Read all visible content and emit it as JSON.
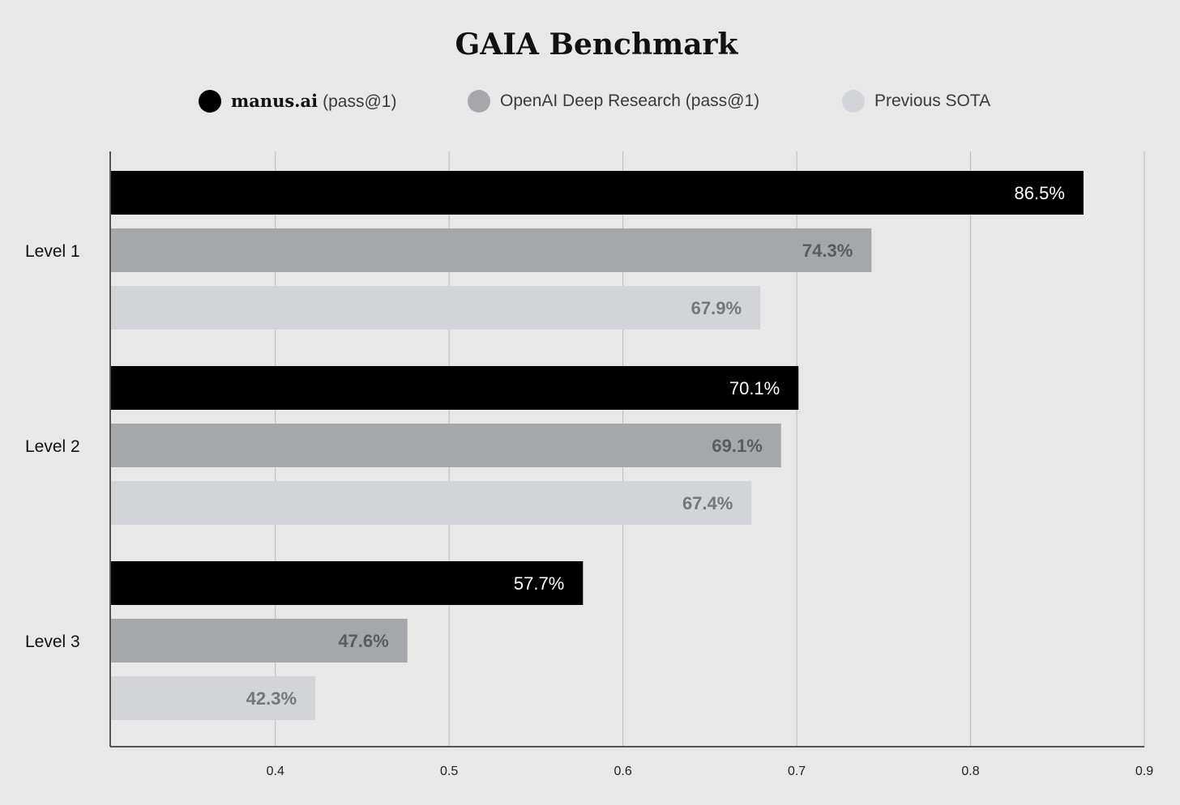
{
  "chart_data": {
    "type": "bar",
    "orientation": "horizontal",
    "title": "GAIA Benchmark",
    "categories": [
      "Level 1",
      "Level 2",
      "Level 3"
    ],
    "series": [
      {
        "name": "manus.ai (pass@1)",
        "brand": "manus.ai",
        "suffix": "(pass@1)",
        "color": "#000000",
        "label_color": "#ffffff",
        "values": [
          0.865,
          0.701,
          0.577
        ],
        "labels": [
          "86.5%",
          "70.1%",
          "57.7%"
        ]
      },
      {
        "name": "OpenAI Deep Research (pass@1)",
        "color": "#a6a7ab",
        "label_color": "#5a5b5e",
        "values": [
          0.743,
          0.691,
          0.476
        ],
        "labels": [
          "74.3%",
          "69.1%",
          "47.6%"
        ]
      },
      {
        "name": "Previous SOTA",
        "color": "#d3d4d7",
        "label_color": "#75767a",
        "values": [
          0.679,
          0.674,
          0.423
        ],
        "labels": [
          "67.9%",
          "67.4%",
          "42.3%"
        ]
      }
    ],
    "xlim": [
      0.305,
      0.9
    ],
    "xticks": [
      0.4,
      0.5,
      0.6,
      0.7,
      0.8,
      0.9
    ],
    "xtick_labels": [
      "0.4",
      "0.5",
      "0.6",
      "0.7",
      "0.8",
      "0.9"
    ],
    "xlabel": "",
    "ylabel": "",
    "grid": true,
    "legend": "top"
  }
}
